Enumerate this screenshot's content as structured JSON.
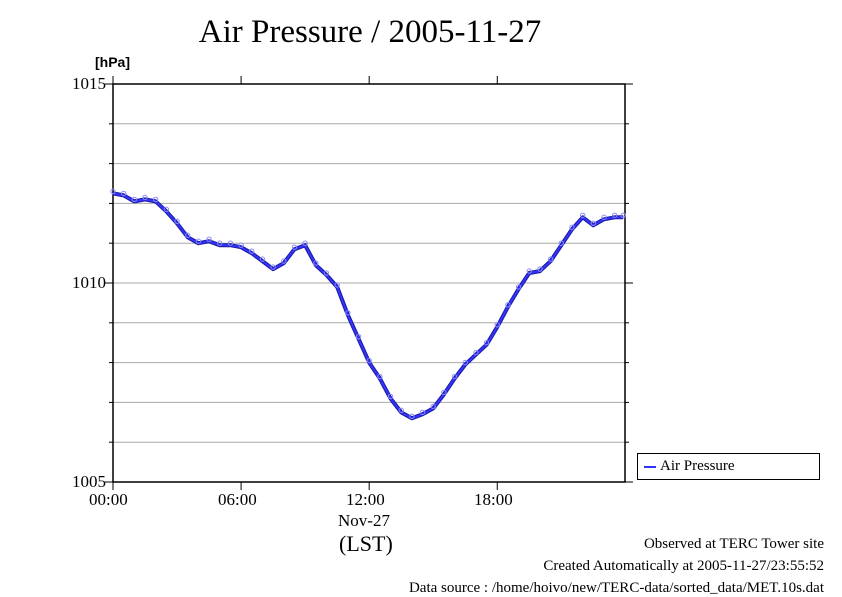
{
  "chart_data": {
    "type": "line",
    "title": "Air Pressure / 2005-11-27",
    "ylabel": "[hPa]",
    "xlabel": "Nov-27",
    "x_timezone_label": "(LST)",
    "ylim": [
      1005,
      1015
    ],
    "y_ticks": [
      "1015",
      "1010",
      "1005"
    ],
    "y_minor_gridlines": [
      1006,
      1007,
      1008,
      1009,
      1011,
      1012,
      1013,
      1014
    ],
    "xlim_hours": [
      0,
      23.9833
    ],
    "x_ticks": [
      {
        "hour": 0,
        "label": "00:00"
      },
      {
        "hour": 6,
        "label": "06:00"
      },
      {
        "hour": 12,
        "label": "12:00"
      },
      {
        "hour": 18,
        "label": "18:00"
      }
    ],
    "grid": true,
    "legend_position": "right-bottom",
    "series": [
      {
        "name": "Air Pressure",
        "color": "#3333ff",
        "marker": "circle",
        "x_hours": [
          0,
          0.5,
          1.0,
          1.5,
          2.0,
          2.5,
          3.0,
          3.5,
          4.0,
          4.5,
          5.0,
          5.5,
          6.0,
          6.5,
          7.0,
          7.5,
          8.0,
          8.5,
          9.0,
          9.5,
          10.0,
          10.5,
          11.0,
          11.5,
          12.0,
          12.5,
          13.0,
          13.5,
          14.0,
          14.5,
          15.0,
          15.5,
          16.0,
          16.5,
          17.0,
          17.5,
          18.0,
          18.5,
          19.0,
          19.5,
          20.0,
          20.5,
          21.0,
          21.5,
          22.0,
          22.5,
          23.0,
          23.5,
          23.9
        ],
        "values": [
          1012.25,
          1012.2,
          1012.05,
          1012.1,
          1012.05,
          1011.8,
          1011.5,
          1011.15,
          1011.0,
          1011.05,
          1010.95,
          1010.95,
          1010.9,
          1010.75,
          1010.55,
          1010.35,
          1010.5,
          1010.85,
          1010.95,
          1010.45,
          1010.2,
          1009.9,
          1009.2,
          1008.6,
          1008.0,
          1007.6,
          1007.1,
          1006.75,
          1006.6,
          1006.7,
          1006.85,
          1007.2,
          1007.6,
          1007.95,
          1008.2,
          1008.45,
          1008.9,
          1009.4,
          1009.85,
          1010.25,
          1010.3,
          1010.55,
          1010.95,
          1011.35,
          1011.65,
          1011.45,
          1011.6,
          1011.65,
          1011.65
        ]
      }
    ],
    "annotations": [
      "Observed at TERC Tower site",
      "Created Automatically at 2005-11-27/23:55:52",
      "Data source : /home/hoivo/new/TERC-data/sorted_data/MET.10s.dat"
    ]
  }
}
